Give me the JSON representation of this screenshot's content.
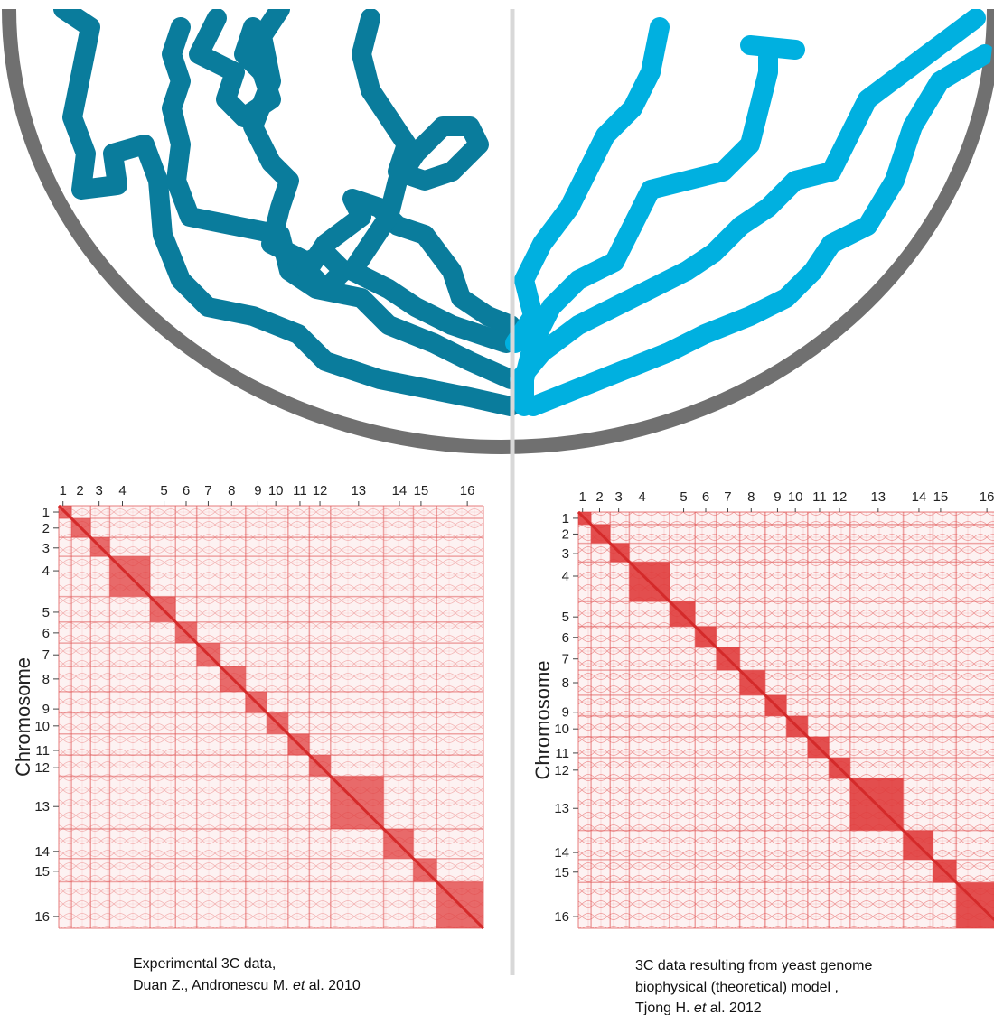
{
  "panels": [
    {
      "labels": [
        "1",
        "2",
        "3",
        "4",
        "5",
        "6",
        "7",
        "8",
        "9",
        "10",
        "11",
        "12",
        "13",
        "14",
        "15",
        "16"
      ],
      "y_label": "Chromosome",
      "caption": {
        "line1": "Experimental 3C data,",
        "line2_before": "Duan Z., Andronescu M. ",
        "line2_italic": "et",
        "line2_after": " al. 2010"
      }
    },
    {
      "labels": [
        "1",
        "2",
        "3",
        "4",
        "5",
        "6",
        "7",
        "8",
        "9",
        "10",
        "11",
        "12",
        "13",
        "14",
        "15",
        "16"
      ],
      "y_label": "Chromosome",
      "caption": {
        "line1": "3C data resulting from yeast genome",
        "line2": "biophysical (theoretical) model ,",
        "line3_before": "Tjong H. ",
        "line3_italic": "et",
        "line3_after": " al. 2012"
      }
    }
  ]
}
